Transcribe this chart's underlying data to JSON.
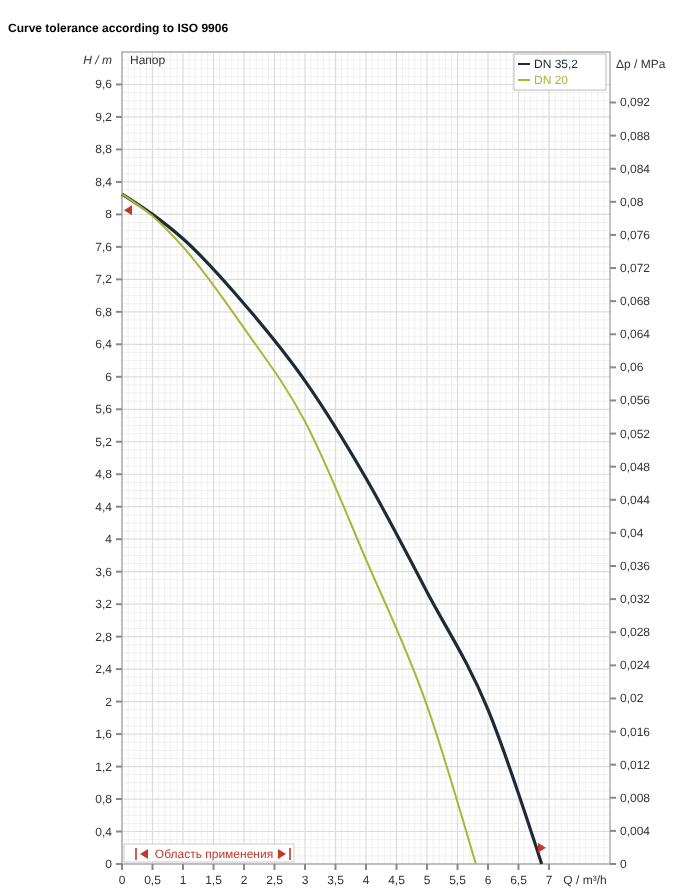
{
  "chart_data": {
    "type": "line",
    "title": "Curve tolerance according to ISO 9906",
    "xlabel": "Q / m³/h",
    "ylabel": "H / m",
    "y2label": "Δp / MPa",
    "annotations": [
      "Напор",
      "Область применения"
    ],
    "series": [
      {
        "name": "DN 35,2",
        "color": "#1f2a36",
        "x": [
          0,
          0.5,
          1,
          2,
          3,
          4,
          5,
          6,
          6.88
        ],
        "values": [
          8.25,
          8.0,
          7.7,
          6.9,
          5.95,
          4.75,
          3.35,
          1.9,
          0
        ]
      },
      {
        "name": "DN 20",
        "color": "#a8b63a",
        "x": [
          0,
          0.5,
          1,
          2,
          3,
          4,
          5,
          5.8
        ],
        "values": [
          8.25,
          7.98,
          7.6,
          6.6,
          5.45,
          3.75,
          1.95,
          0
        ]
      }
    ],
    "xlim": [
      0,
      8
    ],
    "ylim": [
      0,
      10
    ],
    "y2lim": [
      0,
      0.0981
    ],
    "xticks": [
      0,
      {
        "value": 0.5,
        "label": "0,5"
      },
      1,
      {
        "value": 1.5,
        "label": "1,5"
      },
      2,
      {
        "value": 2.5,
        "label": "2,5"
      },
      3,
      {
        "value": 3.5,
        "label": "3,5"
      },
      4,
      {
        "value": 4.5,
        "label": "4,5"
      },
      5,
      {
        "value": 5.5,
        "label": "5,5"
      },
      6,
      {
        "value": 6.5,
        "label": "6,5"
      },
      7
    ],
    "yticks": [
      0,
      {
        "value": 0.4,
        "label": "0,4"
      },
      {
        "value": 0.8,
        "label": "0,8"
      },
      {
        "value": 1.2,
        "label": "1,2"
      },
      {
        "value": 1.6,
        "label": "1,6"
      },
      2,
      {
        "value": 2.4,
        "label": "2,4"
      },
      {
        "value": 2.8,
        "label": "2,8"
      },
      {
        "value": 3.2,
        "label": "3,2"
      },
      {
        "value": 3.6,
        "label": "3,6"
      },
      4,
      {
        "value": 4.4,
        "label": "4,4"
      },
      {
        "value": 4.8,
        "label": "4,8"
      },
      {
        "value": 5.2,
        "label": "5,2"
      },
      {
        "value": 5.6,
        "label": "5,6"
      },
      6,
      {
        "value": 6.4,
        "label": "6,4"
      },
      {
        "value": 6.8,
        "label": "6,8"
      },
      {
        "value": 7.2,
        "label": "7,2"
      },
      {
        "value": 7.6,
        "label": "7,6"
      },
      8,
      {
        "value": 8.4,
        "label": "8,4"
      },
      {
        "value": 8.8,
        "label": "8,8"
      },
      {
        "value": 9.2,
        "label": "9,2"
      },
      {
        "value": 9.6,
        "label": "9,6"
      }
    ],
    "y2ticks": [
      0,
      {
        "value": 0.004,
        "label": "0,004"
      },
      {
        "value": 0.008,
        "label": "0,008"
      },
      {
        "value": 0.012,
        "label": "0,012"
      },
      {
        "value": 0.016,
        "label": "0,016"
      },
      {
        "value": 0.02,
        "label": "0,02"
      },
      {
        "value": 0.024,
        "label": "0,024"
      },
      {
        "value": 0.028,
        "label": "0,028"
      },
      {
        "value": 0.032,
        "label": "0,032"
      },
      {
        "value": 0.036,
        "label": "0,036"
      },
      {
        "value": 0.04,
        "label": "0,04"
      },
      {
        "value": 0.044,
        "label": "0,044"
      },
      {
        "value": 0.048,
        "label": "0,048"
      },
      {
        "value": 0.052,
        "label": "0,052"
      },
      {
        "value": 0.056,
        "label": "0,056"
      },
      {
        "value": 0.06,
        "label": "0,06"
      },
      {
        "value": 0.064,
        "label": "0,064"
      },
      {
        "value": 0.068,
        "label": "0,068"
      },
      {
        "value": 0.072,
        "label": "0,072"
      },
      {
        "value": 0.076,
        "label": "0,076"
      },
      {
        "value": 0.08,
        "label": "0,08"
      },
      {
        "value": 0.084,
        "label": "0,084"
      },
      {
        "value": 0.088,
        "label": "0,088"
      },
      {
        "value": 0.092,
        "label": "0,092"
      }
    ],
    "grid": true,
    "legend": "top right",
    "marker": "none",
    "line_style": "solid"
  }
}
